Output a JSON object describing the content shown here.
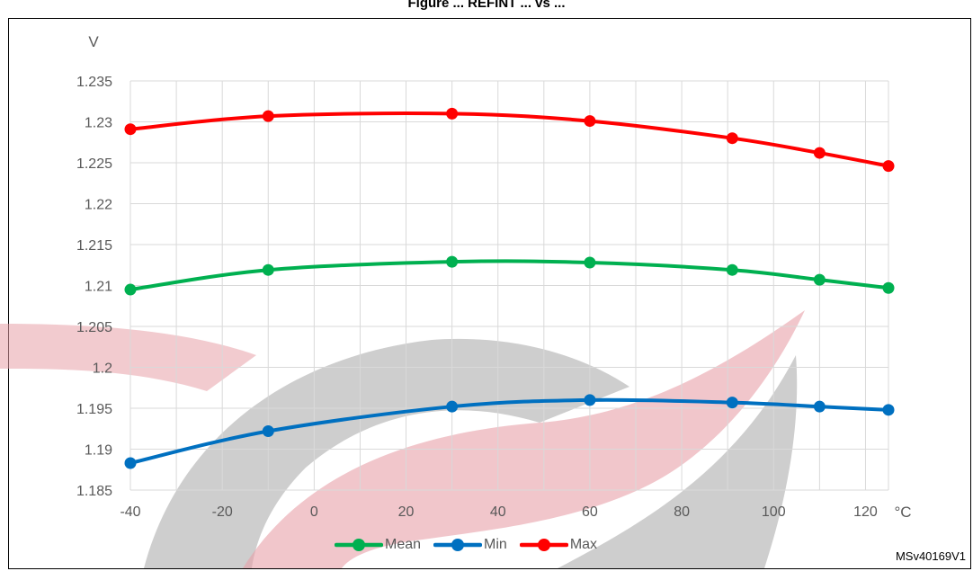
{
  "figure": {
    "title": "Figure ... REFINT ... vs ...",
    "code": "MSv40169V1"
  },
  "colors": {
    "mean": "#00b050",
    "min": "#0070c0",
    "max": "#ff0000",
    "grid": "#d9d9d9",
    "tick_text": "#595959",
    "watermark_red": "#e8a0a8",
    "watermark_gray": "#a6a6a6"
  },
  "chart_data": {
    "type": "line",
    "ylabel": "V",
    "xlabel": "°C",
    "xlim": [
      -40,
      125
    ],
    "ylim": [
      1.185,
      1.235
    ],
    "x_ticks": [
      "-40",
      "-20",
      "0",
      "20",
      "40",
      "60",
      "80",
      "100",
      "120"
    ],
    "y_ticks": [
      "1.185",
      "1.19",
      "1.195",
      "1.2",
      "1.205",
      "1.21",
      "1.215",
      "1.22",
      "1.225",
      "1.23",
      "1.235"
    ],
    "grid": true,
    "legend_position": "bottom",
    "series": [
      {
        "name": "Mean",
        "color": "#00b050",
        "x": [
          -40,
          -10,
          30,
          60,
          91,
          110,
          125
        ],
        "y": [
          1.2095,
          1.2119,
          1.2129,
          1.2128,
          1.2119,
          1.2107,
          1.2097
        ]
      },
      {
        "name": "Min",
        "color": "#0070c0",
        "x": [
          -40,
          -10,
          30,
          60,
          91,
          110,
          125
        ],
        "y": [
          1.1883,
          1.1922,
          1.1952,
          1.196,
          1.1957,
          1.1952,
          1.1948
        ]
      },
      {
        "name": "Max",
        "color": "#ff0000",
        "x": [
          -40,
          -10,
          30,
          60,
          91,
          110,
          125
        ],
        "y": [
          1.2291,
          1.2307,
          1.231,
          1.2301,
          1.228,
          1.2262,
          1.2246
        ]
      }
    ]
  }
}
